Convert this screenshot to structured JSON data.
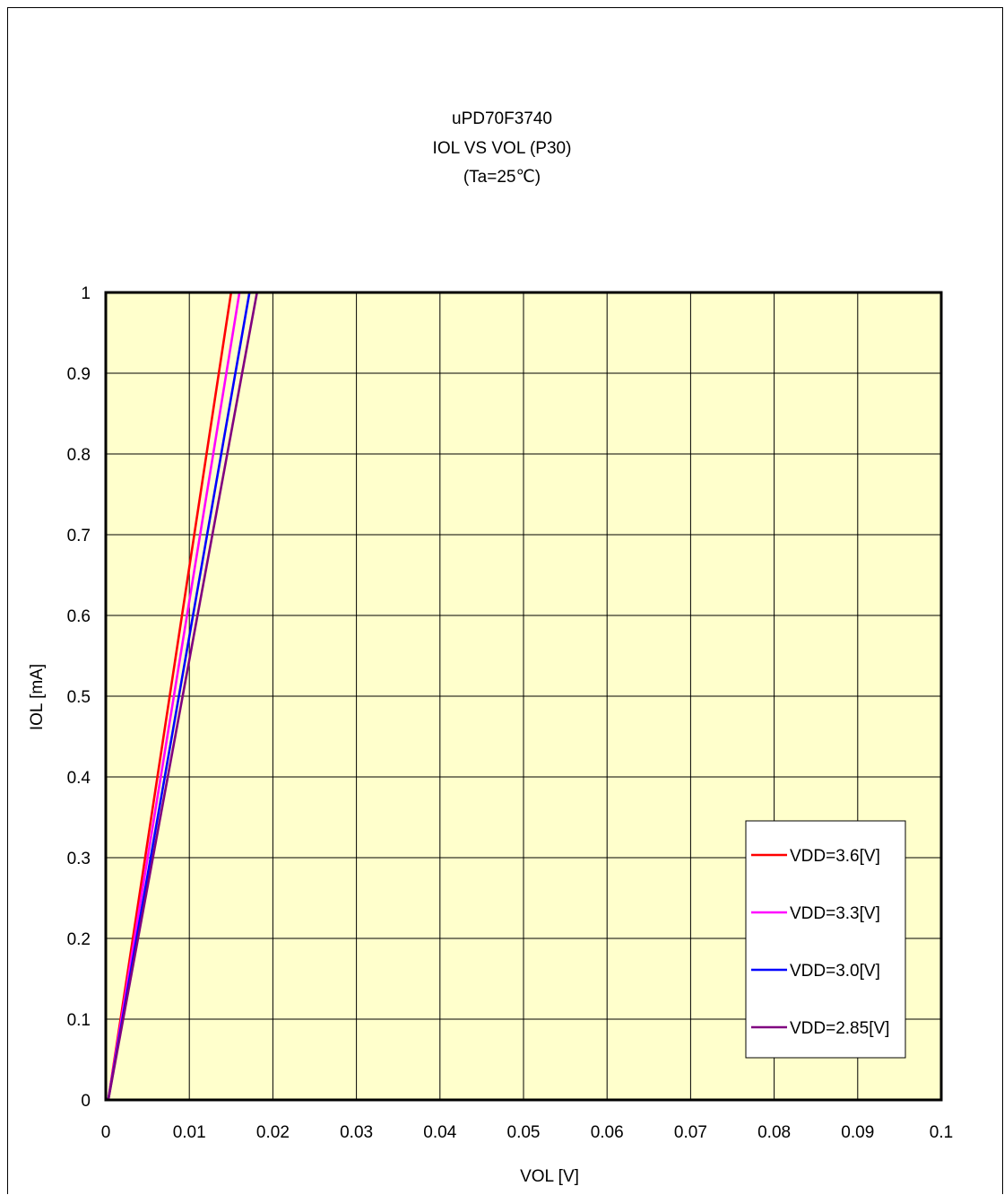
{
  "chart_data": {
    "type": "line",
    "title_lines": [
      "uPD70F3740",
      "IOL VS VOL (P30)",
      "(Ta=25℃)"
    ],
    "xlabel": "VOL [V]",
    "ylabel": "IOL [mA]",
    "xlim": [
      0,
      0.1
    ],
    "ylim": [
      0,
      1
    ],
    "x_ticks": [
      "0",
      "0.01",
      "0.02",
      "0.03",
      "0.04",
      "0.05",
      "0.06",
      "0.07",
      "0.08",
      "0.09",
      "0.1"
    ],
    "y_ticks": [
      "0",
      "0.1",
      "0.2",
      "0.3",
      "0.4",
      "0.5",
      "0.6",
      "0.7",
      "0.8",
      "0.9",
      "1"
    ],
    "grid": true,
    "legend_position": "bottom-right",
    "plot_background": "#FFFFCC",
    "series": [
      {
        "name": "VDD=3.6[V]",
        "color": "#FF0000",
        "points": [
          [
            0.0003,
            0
          ],
          [
            0.015,
            1
          ]
        ]
      },
      {
        "name": "VDD=3.3[V]",
        "color": "#FF00FF",
        "points": [
          [
            0.0003,
            0
          ],
          [
            0.016,
            1
          ]
        ]
      },
      {
        "name": "VDD=3.0[V]",
        "color": "#0000FF",
        "points": [
          [
            0.0003,
            0
          ],
          [
            0.0172,
            1
          ]
        ]
      },
      {
        "name": "VDD=2.85[V]",
        "color": "#800080",
        "points": [
          [
            0.0003,
            0
          ],
          [
            0.0181,
            1
          ]
        ]
      }
    ]
  }
}
